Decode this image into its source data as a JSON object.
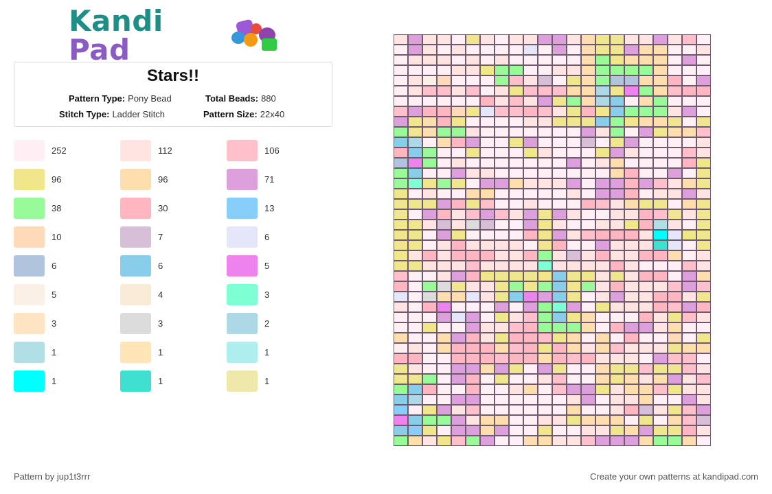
{
  "logo": {
    "word1": "Kandi",
    "word2": "Pad"
  },
  "pattern": {
    "title": "Stars!!",
    "pattern_type_label": "Pattern Type:",
    "pattern_type": "Pony Bead",
    "total_beads_label": "Total Beads:",
    "total_beads": "880",
    "stitch_type_label": "Stitch Type:",
    "stitch_type": "Ladder Stitch",
    "pattern_size_label": "Pattern Size:",
    "pattern_size": "22x40"
  },
  "legend": [
    {
      "color": "#fff0f5",
      "count": "252"
    },
    {
      "color": "#ffe4e1",
      "count": "112"
    },
    {
      "color": "#ffc0cb",
      "count": "106"
    },
    {
      "color": "#f0e68c",
      "count": "96"
    },
    {
      "color": "#ffdead",
      "count": "96"
    },
    {
      "color": "#dda0dd",
      "count": "71"
    },
    {
      "color": "#98fb98",
      "count": "38"
    },
    {
      "color": "#ffb6c1",
      "count": "30"
    },
    {
      "color": "#87cefa",
      "count": "13"
    },
    {
      "color": "#ffdab9",
      "count": "10"
    },
    {
      "color": "#d8bfd8",
      "count": "7"
    },
    {
      "color": "#e6e6fa",
      "count": "6"
    },
    {
      "color": "#b0c4de",
      "count": "6"
    },
    {
      "color": "#87ceeb",
      "count": "6"
    },
    {
      "color": "#ee82ee",
      "count": "5"
    },
    {
      "color": "#faf0e6",
      "count": "5"
    },
    {
      "color": "#faebd7",
      "count": "4"
    },
    {
      "color": "#7fffd4",
      "count": "3"
    },
    {
      "color": "#ffe4c4",
      "count": "3"
    },
    {
      "color": "#dcdcdc",
      "count": "3"
    },
    {
      "color": "#add8e6",
      "count": "2"
    },
    {
      "color": "#b0e0e6",
      "count": "1"
    },
    {
      "color": "#ffe4b5",
      "count": "1"
    },
    {
      "color": "#afeeee",
      "count": "1"
    },
    {
      "color": "#00ffff",
      "count": "1"
    },
    {
      "color": "#40e0d0",
      "count": "1"
    },
    {
      "color": "#eee8aa",
      "count": "1"
    }
  ],
  "grid": {
    "columns": 22,
    "rows": 40,
    "palette": {
      "a": "#fff0f5",
      "b": "#ffe4e1",
      "c": "#ffc0cb",
      "d": "#f0e68c",
      "e": "#ffdead",
      "f": "#dda0dd",
      "g": "#98fb98",
      "h": "#ffb6c1",
      "i": "#87cefa",
      "j": "#ffdab9",
      "k": "#d8bfd8",
      "l": "#e6e6fa",
      "m": "#b0c4de",
      "n": "#87ceeb",
      "o": "#ee82ee",
      "p": "#faf0e6",
      "q": "#faebd7",
      "r": "#7fffd4",
      "s": "#ffe4c4",
      "t": "#dcdcdc",
      "u": "#add8e6",
      "v": "#b0e0e6",
      "w": "#ffe4b5",
      "x": "#afeeee",
      "y": "#00ffff",
      "z": "#40e0d0",
      "A": "#eee8aa"
    },
    "cells": [
      "bfbbadbabbffbeddbbfbca",
      "afbabaaaalafaeddfeeaab",
      "abbbababaaaaaegdeeeafa",
      "aaaabbdggaabbeggggeaaa",
      "abpjaaagcbkadegmmeehaf",
      "abccbcabdccceeudogechh",
      "aaaaaahbcbfdgeunaegaaa",
      "cfhhjdlcchcbdhdngggbfa",
      "fdehdaaaabbdddngdeedad",
      "gdeggbaaaaaaafbgafdeec",
      "nuaehfaadfaaakadfaaaab",
      "hngaadaaadbaaadfbaaacb",
      "mogabaaaaaaafabeaaaahd",
      "gnaafbbaaaaaaaaehaafad",
      "grdgdaffebbbfaffhfcbed",
      "dabaaeeaaaaabaffhabbfb",
      "dddfhdcaabaaahcbeddaed",
      "dafhbcfcbfdfbaabbhcdbd",
      "ddbkbtkaafdbaabbdhvbad",
      "ddafdaaaahdfbchhhbyldd",
      "ddabhbbbbadhaafbbbzlad",
      "dbhbhhhbbhgbkbhbbhheab",
      "ddbbbcbbbbrbbbbhbaaacb",
      "caabfhdddddnddbdbhhafe",
      "hagtdbbdgdgndgbhbbbcfc",
      "lateelbdnofndabfbbhhbd",
      "bahoaaafafgrfadbbbhcfh",
      "aaaflfadbcgndeaaahbdcb",
      "aadaafbbchgggeahffbeaa",
      "eaaefhbdhhcdeaeahaajad",
      "abaehhhechdhebecbbbdee",
      "hhaahhhchhehchbbbafcca",
      "dbaaffefdafdaaeddcddcb",
      "ddgafhadaabcaaedebefbc",
      "gnhaahaabeacffdbeecdbb",
      "nuaaffaaaaaabfabbeaafb",
      "iadfbcaaaaaaeaabhkbdcf",
      "onggfbeeaabbdeeeadaeck",
      "nidaffefaadaabbdefddhb",
      "gebdcgfaaeebbcfffeggea"
    ]
  },
  "footer": {
    "left": "Pattern by jup1t3rrr",
    "right": "Create your own patterns at kandipad.com"
  }
}
